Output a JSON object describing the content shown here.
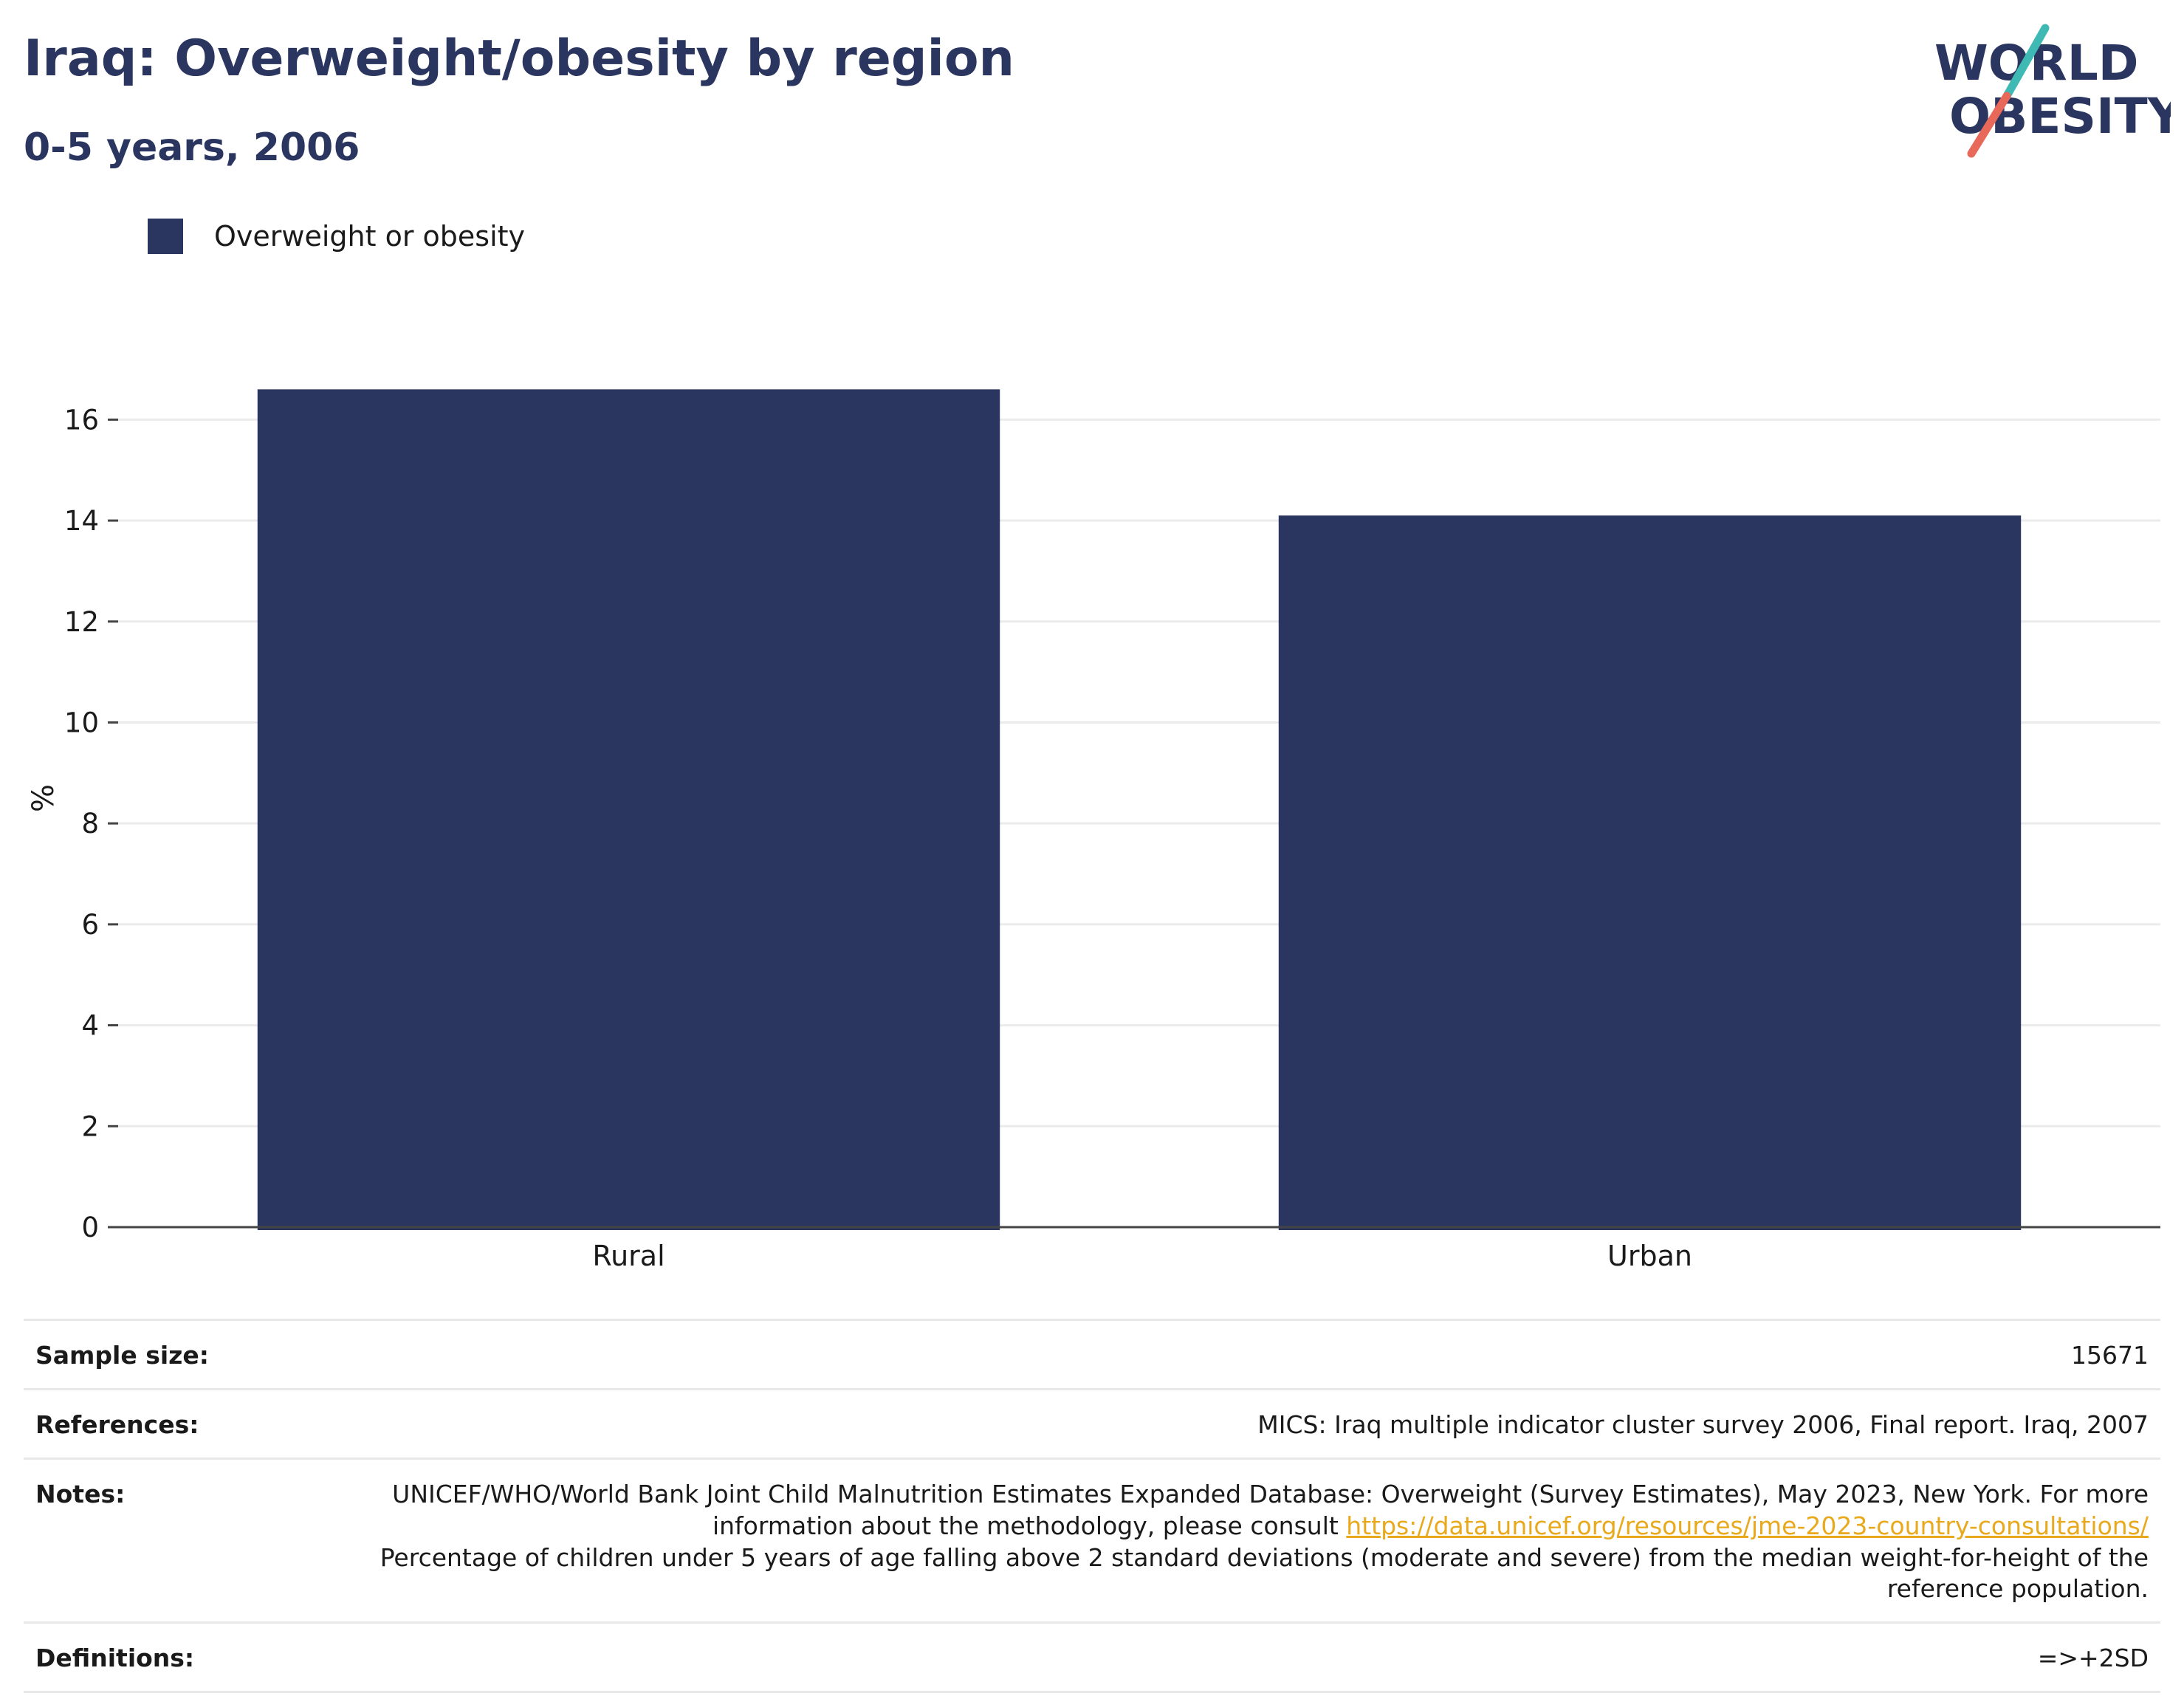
{
  "title": "Iraq: Overweight/obesity by region",
  "subtitle": "0-5 years, 2006",
  "logo": {
    "line1": "WORLD",
    "line2": "OBESITY"
  },
  "colors": {
    "bar": "#2a365f",
    "title": "#2a365f",
    "grid": "#ebebeb",
    "link": "#e8a91c",
    "logo_teal": "#3fb9b4",
    "logo_coral": "#e8685a"
  },
  "legend": [
    {
      "label": "Overweight or obesity",
      "color": "#2a365f"
    }
  ],
  "chart_data": {
    "type": "bar",
    "categories": [
      "Rural",
      "Urban"
    ],
    "series": [
      {
        "name": "Overweight or obesity",
        "values": [
          16.6,
          14.1
        ]
      }
    ],
    "ylabel": "%",
    "ylim": [
      0,
      17
    ],
    "yticks": [
      0,
      2,
      4,
      6,
      8,
      10,
      12,
      14,
      16
    ],
    "grid": true
  },
  "info": {
    "sample_size_label": "Sample size:",
    "sample_size_value": "15671",
    "references_label": "References:",
    "references_value": "MICS: Iraq multiple indicator cluster survey 2006, Final report. Iraq, 2007",
    "notes_label": "Notes:",
    "notes_text_1": "UNICEF/WHO/World Bank Joint Child Malnutrition Estimates Expanded Database: Overweight (Survey Estimates), May 2023, New York. For more information about the methodology, please consult ",
    "notes_link": "https://data.unicef.org/resources/jme-2023-country-consultations/",
    "notes_text_2": "Percentage of children under 5 years of age falling above 2 standard deviations (moderate and severe) from the median weight-for-height of the reference population.",
    "definitions_label": "Definitions:",
    "definitions_value": "=>+2SD"
  }
}
